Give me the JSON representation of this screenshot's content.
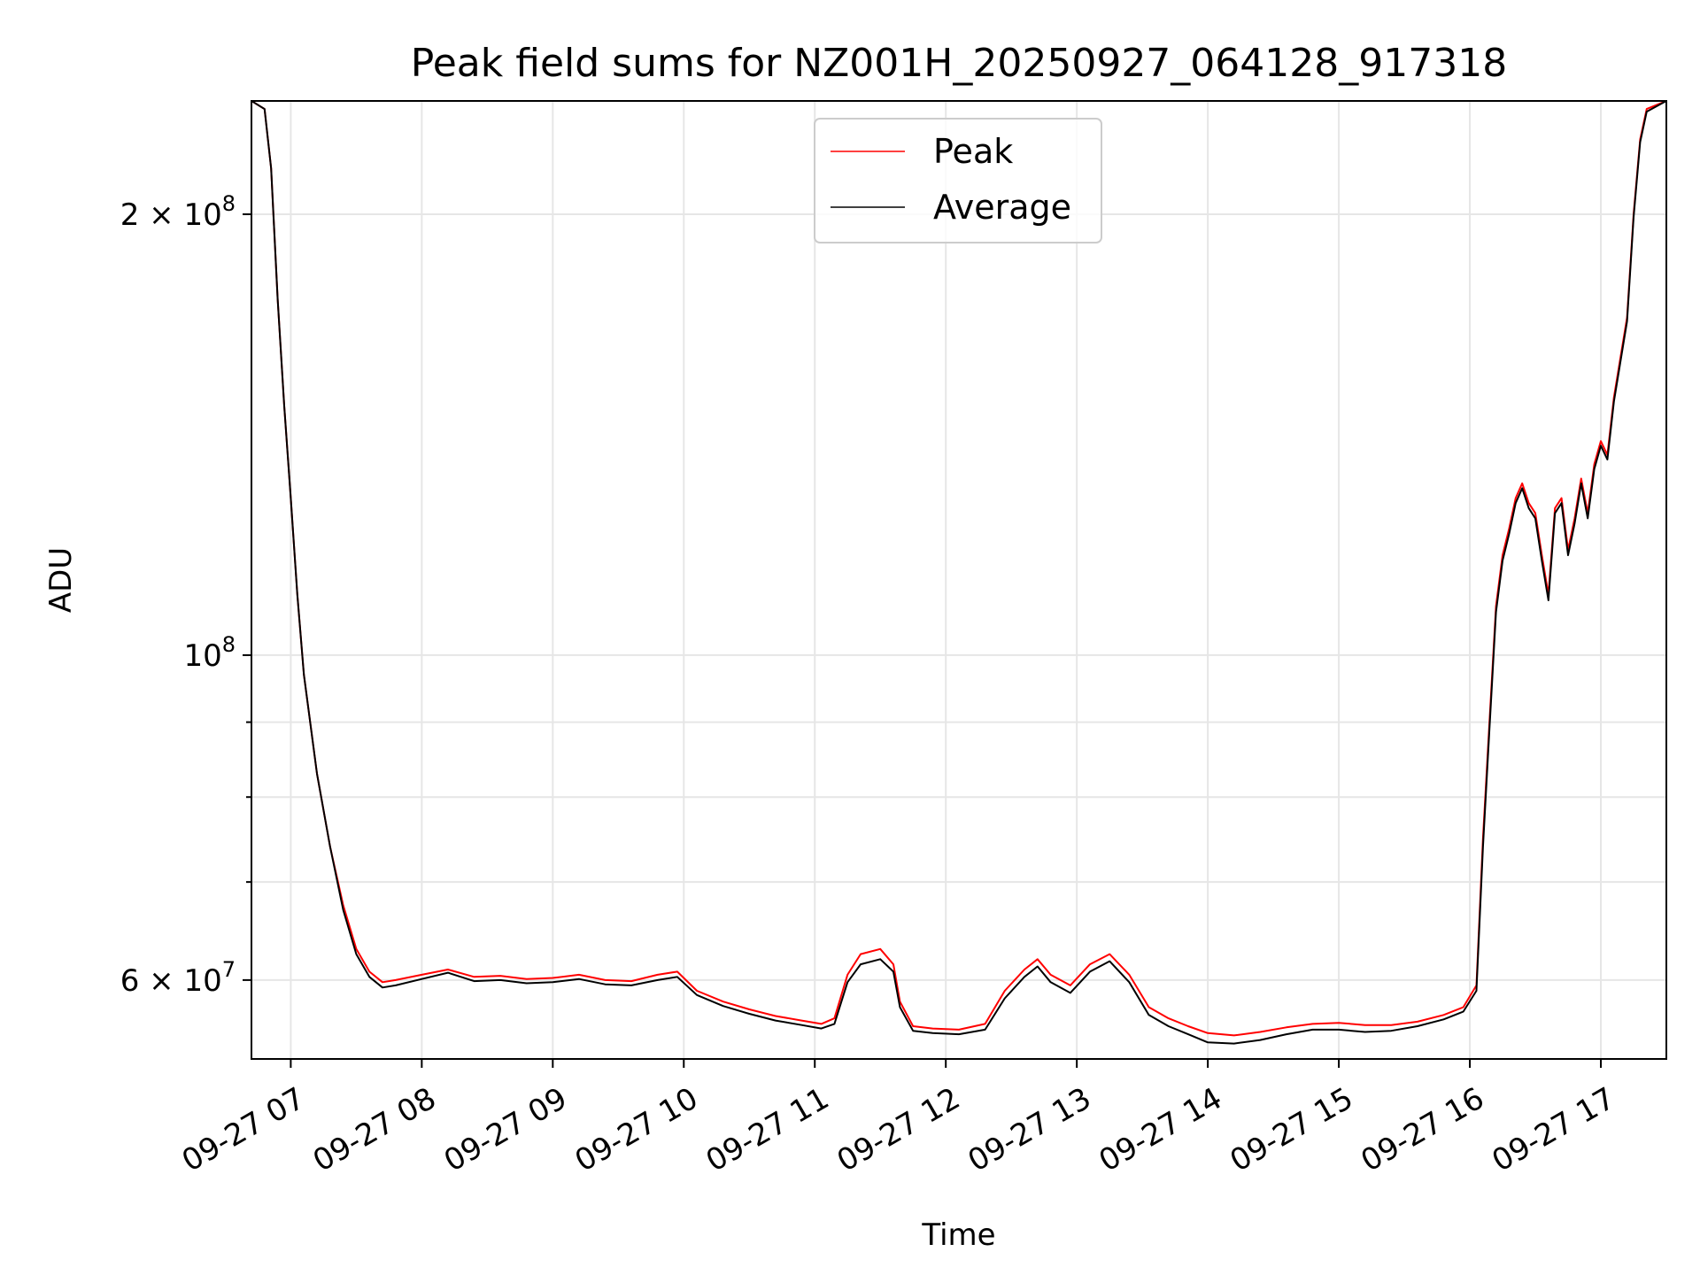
{
  "chart_data": {
    "type": "line",
    "title": "Peak field sums for NZ001H_20250927_064128_917318",
    "xlabel": "Time",
    "ylabel": "ADU",
    "yscale": "log",
    "ylim": [
      53000000,
      239000000
    ],
    "xlim": [
      6.7,
      17.5
    ],
    "grid": true,
    "legend_position": "top-center",
    "x_ticks": [
      {
        "value": 7,
        "label": "09-27 07"
      },
      {
        "value": 8,
        "label": "09-27 08"
      },
      {
        "value": 9,
        "label": "09-27 09"
      },
      {
        "value": 10,
        "label": "09-27 10"
      },
      {
        "value": 11,
        "label": "09-27 11"
      },
      {
        "value": 12,
        "label": "09-27 12"
      },
      {
        "value": 13,
        "label": "09-27 13"
      },
      {
        "value": 14,
        "label": "09-27 14"
      },
      {
        "value": 15,
        "label": "09-27 15"
      },
      {
        "value": 16,
        "label": "09-27 16"
      },
      {
        "value": 17,
        "label": "09-27 17"
      }
    ],
    "y_major_ticks": [
      {
        "value": 60000000,
        "base": "6 × 10",
        "exp": "7"
      },
      {
        "value": 100000000,
        "base": "10",
        "exp": "8"
      },
      {
        "value": 200000000,
        "base": "2 × 10",
        "exp": "8"
      }
    ],
    "y_minor_ticks": [
      70000000,
      80000000,
      90000000
    ],
    "series": [
      {
        "name": "Peak",
        "color": "#ff0000",
        "points": [
          [
            6.7,
            239000000
          ],
          [
            6.8,
            236000000
          ],
          [
            6.85,
            215000000
          ],
          [
            6.9,
            175000000
          ],
          [
            6.95,
            148000000
          ],
          [
            7.0,
            128000000
          ],
          [
            7.05,
            110000000
          ],
          [
            7.1,
            97000000
          ],
          [
            7.2,
            83000000
          ],
          [
            7.3,
            74000000
          ],
          [
            7.4,
            67500000
          ],
          [
            7.5,
            63000000
          ],
          [
            7.6,
            60800000
          ],
          [
            7.7,
            59800000
          ],
          [
            7.8,
            60000000
          ],
          [
            8.0,
            60500000
          ],
          [
            8.2,
            61000000
          ],
          [
            8.4,
            60300000
          ],
          [
            8.6,
            60400000
          ],
          [
            8.8,
            60100000
          ],
          [
            9.0,
            60200000
          ],
          [
            9.2,
            60500000
          ],
          [
            9.4,
            60000000
          ],
          [
            9.6,
            59900000
          ],
          [
            9.8,
            60500000
          ],
          [
            9.95,
            60800000
          ],
          [
            10.1,
            59000000
          ],
          [
            10.3,
            58000000
          ],
          [
            10.5,
            57300000
          ],
          [
            10.7,
            56700000
          ],
          [
            10.9,
            56300000
          ],
          [
            11.05,
            56000000
          ],
          [
            11.15,
            56500000
          ],
          [
            11.25,
            60500000
          ],
          [
            11.35,
            62500000
          ],
          [
            11.5,
            63000000
          ],
          [
            11.6,
            61500000
          ],
          [
            11.65,
            58000000
          ],
          [
            11.75,
            55800000
          ],
          [
            11.9,
            55600000
          ],
          [
            12.1,
            55500000
          ],
          [
            12.3,
            56000000
          ],
          [
            12.45,
            59000000
          ],
          [
            12.6,
            61000000
          ],
          [
            12.7,
            62000000
          ],
          [
            12.8,
            60500000
          ],
          [
            12.95,
            59500000
          ],
          [
            13.1,
            61500000
          ],
          [
            13.25,
            62500000
          ],
          [
            13.4,
            60500000
          ],
          [
            13.55,
            57500000
          ],
          [
            13.7,
            56500000
          ],
          [
            13.85,
            55800000
          ],
          [
            14.0,
            55200000
          ],
          [
            14.2,
            55000000
          ],
          [
            14.4,
            55300000
          ],
          [
            14.6,
            55700000
          ],
          [
            14.8,
            56000000
          ],
          [
            15.0,
            56100000
          ],
          [
            15.2,
            55900000
          ],
          [
            15.4,
            55900000
          ],
          [
            15.6,
            56200000
          ],
          [
            15.8,
            56800000
          ],
          [
            15.95,
            57500000
          ],
          [
            16.05,
            59500000
          ],
          [
            16.1,
            75000000
          ],
          [
            16.15,
            90000000
          ],
          [
            16.2,
            108000000
          ],
          [
            16.25,
            117000000
          ],
          [
            16.3,
            122000000
          ],
          [
            16.35,
            128000000
          ],
          [
            16.4,
            131000000
          ],
          [
            16.45,
            127000000
          ],
          [
            16.5,
            125000000
          ],
          [
            16.55,
            117000000
          ],
          [
            16.6,
            110000000
          ],
          [
            16.65,
            126000000
          ],
          [
            16.7,
            128000000
          ],
          [
            16.75,
            118000000
          ],
          [
            16.8,
            124000000
          ],
          [
            16.85,
            132000000
          ],
          [
            16.9,
            125000000
          ],
          [
            16.95,
            135000000
          ],
          [
            17.0,
            140000000
          ],
          [
            17.05,
            137000000
          ],
          [
            17.1,
            150000000
          ],
          [
            17.2,
            170000000
          ],
          [
            17.25,
            200000000
          ],
          [
            17.3,
            225000000
          ],
          [
            17.35,
            236000000
          ],
          [
            17.5,
            239000000
          ]
        ]
      },
      {
        "name": "Average",
        "color": "#000000",
        "points": [
          [
            6.7,
            239000000
          ],
          [
            6.8,
            236000000
          ],
          [
            6.85,
            215000000
          ],
          [
            6.9,
            175000000
          ],
          [
            6.95,
            148000000
          ],
          [
            7.0,
            128000000
          ],
          [
            7.05,
            110000000
          ],
          [
            7.1,
            97000000
          ],
          [
            7.2,
            83000000
          ],
          [
            7.3,
            74000000
          ],
          [
            7.4,
            67000000
          ],
          [
            7.5,
            62500000
          ],
          [
            7.6,
            60300000
          ],
          [
            7.7,
            59300000
          ],
          [
            7.8,
            59500000
          ],
          [
            8.0,
            60100000
          ],
          [
            8.2,
            60700000
          ],
          [
            8.4,
            59900000
          ],
          [
            8.6,
            60000000
          ],
          [
            8.8,
            59700000
          ],
          [
            9.0,
            59800000
          ],
          [
            9.2,
            60100000
          ],
          [
            9.4,
            59600000
          ],
          [
            9.6,
            59500000
          ],
          [
            9.8,
            60000000
          ],
          [
            9.95,
            60300000
          ],
          [
            10.1,
            58600000
          ],
          [
            10.3,
            57600000
          ],
          [
            10.5,
            56900000
          ],
          [
            10.7,
            56300000
          ],
          [
            10.9,
            55900000
          ],
          [
            11.05,
            55600000
          ],
          [
            11.15,
            56000000
          ],
          [
            11.25,
            59800000
          ],
          [
            11.35,
            61500000
          ],
          [
            11.5,
            62000000
          ],
          [
            11.6,
            60800000
          ],
          [
            11.65,
            57500000
          ],
          [
            11.75,
            55400000
          ],
          [
            11.9,
            55200000
          ],
          [
            12.1,
            55100000
          ],
          [
            12.3,
            55500000
          ],
          [
            12.45,
            58300000
          ],
          [
            12.6,
            60300000
          ],
          [
            12.7,
            61300000
          ],
          [
            12.8,
            59800000
          ],
          [
            12.95,
            58800000
          ],
          [
            13.1,
            60800000
          ],
          [
            13.25,
            61800000
          ],
          [
            13.4,
            59800000
          ],
          [
            13.55,
            56800000
          ],
          [
            13.7,
            55800000
          ],
          [
            13.85,
            55100000
          ],
          [
            14.0,
            54400000
          ],
          [
            14.2,
            54300000
          ],
          [
            14.4,
            54600000
          ],
          [
            14.6,
            55100000
          ],
          [
            14.8,
            55500000
          ],
          [
            15.0,
            55500000
          ],
          [
            15.2,
            55300000
          ],
          [
            15.4,
            55400000
          ],
          [
            15.6,
            55800000
          ],
          [
            15.8,
            56400000
          ],
          [
            15.95,
            57100000
          ],
          [
            16.05,
            59000000
          ],
          [
            16.1,
            74000000
          ],
          [
            16.15,
            89000000
          ],
          [
            16.2,
            107000000
          ],
          [
            16.25,
            116000000
          ],
          [
            16.3,
            121000000
          ],
          [
            16.35,
            127000000
          ],
          [
            16.4,
            130000000
          ],
          [
            16.45,
            126000000
          ],
          [
            16.5,
            124000000
          ],
          [
            16.55,
            116000000
          ],
          [
            16.6,
            109000000
          ],
          [
            16.65,
            125000000
          ],
          [
            16.7,
            127000000
          ],
          [
            16.75,
            117000000
          ],
          [
            16.8,
            123000000
          ],
          [
            16.85,
            131000000
          ],
          [
            16.9,
            124000000
          ],
          [
            16.95,
            134000000
          ],
          [
            17.0,
            139000000
          ],
          [
            17.05,
            136000000
          ],
          [
            17.1,
            149000000
          ],
          [
            17.2,
            169000000
          ],
          [
            17.25,
            199000000
          ],
          [
            17.3,
            224000000
          ],
          [
            17.35,
            235000000
          ],
          [
            17.5,
            239000000
          ]
        ]
      }
    ]
  }
}
